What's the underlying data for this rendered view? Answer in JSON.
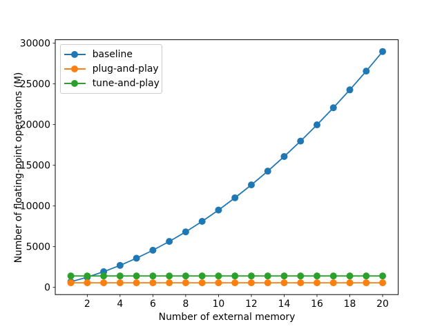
{
  "figure": {
    "background": "#ffffff"
  },
  "chart_data": {
    "type": "line",
    "title": "",
    "xlabel": "Number of external memory",
    "ylabel": "Number of floating-point operations (M)",
    "x": [
      1,
      2,
      3,
      4,
      5,
      6,
      7,
      8,
      9,
      10,
      11,
      12,
      13,
      14,
      15,
      16,
      17,
      18,
      19,
      20
    ],
    "series": [
      {
        "name": "baseline",
        "color": "#1f77b4",
        "marker": "circle",
        "values": [
          680,
          1250,
          1920,
          2700,
          3580,
          4560,
          5640,
          6820,
          8110,
          9500,
          11000,
          12590,
          14280,
          16080,
          17970,
          19970,
          22070,
          24270,
          26570,
          28980
        ]
      },
      {
        "name": "plug-and-play",
        "color": "#ff7f0e",
        "marker": "circle",
        "values": [
          560,
          560,
          560,
          560,
          560,
          560,
          560,
          560,
          560,
          560,
          560,
          560,
          560,
          560,
          560,
          560,
          560,
          560,
          560,
          560
        ]
      },
      {
        "name": "tune-and-play",
        "color": "#2ca02c",
        "marker": "circle",
        "values": [
          1400,
          1400,
          1400,
          1400,
          1400,
          1400,
          1400,
          1400,
          1400,
          1400,
          1400,
          1400,
          1400,
          1400,
          1400,
          1400,
          1400,
          1400,
          1400,
          1400
        ]
      }
    ],
    "xticks": [
      2,
      4,
      6,
      8,
      10,
      12,
      14,
      16,
      18,
      20
    ],
    "yticks": [
      0,
      5000,
      10000,
      15000,
      20000,
      25000,
      30000
    ],
    "xlim": [
      0.05,
      20.95
    ],
    "ylim": [
      -890,
      30430
    ],
    "grid": false,
    "legend_position": "upper left"
  }
}
